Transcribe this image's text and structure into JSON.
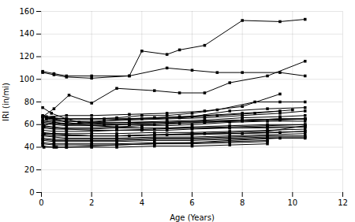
{
  "chart_data": {
    "type": "line",
    "xlabel": "Age (Years)",
    "ylabel": "IRI (in/mi)",
    "xlim": [
      0,
      12
    ],
    "xticks": [
      0,
      2,
      4,
      6,
      8,
      10,
      12
    ],
    "ylim": [
      0,
      160
    ],
    "yticks": [
      0,
      20,
      40,
      60,
      80,
      100,
      120,
      140,
      160
    ],
    "grid": true,
    "marker": "square",
    "series": [
      {
        "x": [
          0.05,
          0.5,
          1.0,
          2.0,
          3.5,
          5.0,
          6.0,
          7.0,
          8.0,
          9.5,
          10.5
        ],
        "values": [
          107,
          105,
          103,
          103,
          103,
          110,
          108,
          106,
          106,
          106,
          103
        ]
      },
      {
        "x": [
          0.05,
          0.5,
          1.0,
          2.0,
          3.5,
          4.0,
          5.0,
          5.5,
          6.5,
          8.0,
          9.5,
          10.5
        ],
        "values": [
          106,
          104,
          102,
          101,
          103,
          125,
          122,
          126,
          130,
          152,
          151,
          153
        ]
      },
      {
        "x": [
          0.05,
          0.5,
          1.1,
          2.0,
          3.0,
          4.5,
          5.5,
          6.5,
          7.5,
          9.0,
          10.5
        ],
        "values": [
          67,
          74,
          86,
          79,
          92,
          90,
          88,
          88,
          97,
          103,
          116
        ]
      },
      {
        "x": [
          0.05,
          0.5,
          1.0,
          2.0,
          3.0,
          4.0,
          5.0,
          6.0,
          7.0,
          8.5,
          9.5,
          10.5
        ],
        "values": [
          67,
          66,
          65,
          65,
          66,
          68,
          68,
          70,
          73,
          80,
          80,
          80
        ]
      },
      {
        "x": [
          0.05,
          0.5,
          1.0,
          2.0,
          3.0,
          4.5,
          6.0,
          7.5,
          9.0,
          10.5
        ],
        "values": [
          66,
          65,
          65,
          65,
          65,
          66,
          67,
          72,
          74,
          75
        ]
      },
      {
        "x": [
          0.05,
          0.5,
          1.0,
          2.0,
          3.5,
          5.0,
          6.5,
          8.0,
          9.5,
          10.5
        ],
        "values": [
          64,
          63,
          63,
          63,
          64,
          65,
          66,
          68,
          70,
          72
        ]
      },
      {
        "x": [
          0.05,
          0.5,
          1.0,
          2.0,
          3.5,
          5.0,
          6.5,
          8.0,
          9.5,
          10.5
        ],
        "values": [
          63,
          62,
          61,
          61,
          62,
          63,
          64,
          66,
          67,
          68
        ]
      },
      {
        "x": [
          0.05,
          0.5,
          1.0,
          2.0,
          3.5,
          5.0,
          6.5,
          8.0,
          9.5,
          10.5
        ],
        "values": [
          62,
          61,
          60,
          60,
          61,
          62,
          63,
          64,
          65,
          65
        ]
      },
      {
        "x": [
          0.05,
          0.5,
          1.0,
          2.0,
          3.5,
          5.0,
          6.5,
          8.0,
          9.5,
          10.5
        ],
        "values": [
          61,
          60,
          59,
          59,
          60,
          61,
          62,
          63,
          64,
          65
        ]
      },
      {
        "x": [
          0.05,
          0.5,
          1.0,
          2.0,
          3.0,
          4.0,
          5.0,
          6.0,
          7.5,
          9.0,
          10.5
        ],
        "values": [
          59,
          58,
          57,
          57,
          58,
          59,
          59,
          60,
          62,
          63,
          63
        ]
      },
      {
        "x": [
          0.05,
          0.5,
          1.0,
          2.0,
          3.0,
          4.0,
          5.0,
          6.0,
          7.5,
          9.0,
          10.5
        ],
        "values": [
          57,
          56,
          56,
          56,
          57,
          57,
          57,
          58,
          59,
          60,
          60
        ]
      },
      {
        "x": [
          0.05,
          0.5,
          1.0,
          2.0,
          3.0,
          4.0,
          5.0,
          6.0,
          7.5,
          9.0,
          10.5
        ],
        "values": [
          55,
          54,
          54,
          54,
          55,
          55,
          55,
          56,
          57,
          58,
          58
        ]
      },
      {
        "x": [
          0.05,
          0.5,
          1.0,
          2.0,
          3.0,
          4.5,
          6.0,
          7.5,
          9.0,
          10.5
        ],
        "values": [
          53,
          52,
          52,
          52,
          52,
          53,
          53,
          54,
          55,
          56
        ]
      },
      {
        "x": [
          0.05,
          0.5,
          1.0,
          2.0,
          3.0,
          4.5,
          6.0,
          7.5,
          9.0,
          10.5
        ],
        "values": [
          51,
          50,
          50,
          50,
          50,
          51,
          51,
          52,
          53,
          54
        ]
      },
      {
        "x": [
          0.05,
          0.5,
          1.0,
          2.0,
          3.0,
          4.5,
          6.0,
          7.5,
          9.0,
          10.5
        ],
        "values": [
          50,
          49,
          48,
          48,
          48,
          49,
          49,
          50,
          51,
          52
        ]
      },
      {
        "x": [
          0.05,
          0.5,
          1.0,
          2.0,
          3.0,
          4.5,
          6.0,
          7.5,
          9.0,
          10.5
        ],
        "values": [
          48,
          47,
          47,
          47,
          47,
          48,
          48,
          49,
          50,
          50
        ]
      },
      {
        "x": [
          0.05,
          0.5,
          1.0,
          2.0,
          3.0,
          4.5,
          6.0,
          7.5,
          9.0,
          10.5
        ],
        "values": [
          47,
          46,
          46,
          46,
          46,
          47,
          47,
          48,
          49,
          49
        ]
      },
      {
        "x": [
          0.05,
          0.5,
          1.0,
          2.0,
          3.0,
          4.5,
          6.0,
          7.5,
          9.0,
          10.5
        ],
        "values": [
          46,
          45,
          45,
          45,
          45,
          46,
          46,
          47,
          48,
          48
        ]
      },
      {
        "x": [
          0.05,
          0.5,
          1.0,
          2.0,
          3.0,
          4.5,
          6.0,
          7.5,
          9.0
        ],
        "values": [
          44,
          43,
          43,
          43,
          43,
          44,
          44,
          45,
          46
        ]
      },
      {
        "x": [
          0.05,
          0.5,
          1.0,
          2.0,
          3.0,
          4.5,
          6.0,
          7.5,
          9.0
        ],
        "values": [
          43,
          42,
          42,
          42,
          42,
          43,
          43,
          44,
          45
        ]
      },
      {
        "x": [
          0.05,
          0.5,
          1.0,
          2.0,
          3.0,
          4.5,
          6.0,
          7.5,
          9.0
        ],
        "values": [
          41,
          40,
          40,
          40,
          40,
          41,
          41,
          42,
          43
        ]
      },
      {
        "x": [
          0.1,
          0.6,
          1.0,
          2.0,
          3.0,
          4.5,
          6.0,
          7.5,
          9.5
        ],
        "values": [
          40,
          40,
          40,
          41,
          42,
          43,
          44,
          46,
          48
        ]
      },
      {
        "x": [
          0.05,
          0.4,
          1.0,
          1.5,
          2.5,
          3.5,
          4.5,
          5.5,
          6.5,
          8.0,
          9.5,
          10.5
        ],
        "values": [
          75,
          70,
          65,
          62,
          60,
          60,
          60,
          61,
          62,
          64,
          65,
          65
        ]
      },
      {
        "x": [
          0.05,
          0.4,
          1.0,
          2.0,
          3.0,
          4.0,
          5.0,
          6.0,
          7.5,
          9.0,
          10.5
        ],
        "values": [
          68,
          66,
          62,
          59,
          58,
          57,
          57,
          57,
          58,
          59,
          60
        ]
      },
      {
        "x": [
          0.1,
          0.5,
          1.0,
          2.5,
          3.5,
          4.5,
          5.5,
          6.5,
          8.0,
          9.5
        ],
        "values": [
          59,
          62,
          60,
          63,
          65,
          66,
          67,
          68,
          70,
          72
        ]
      },
      {
        "x": [
          0.1,
          0.5,
          1.0,
          2.0,
          3.0,
          4.5,
          6.0,
          7.5,
          9.0,
          10.5
        ],
        "values": [
          58,
          57,
          56,
          55,
          55,
          56,
          57,
          57,
          57,
          58
        ]
      },
      {
        "x": [
          0.1,
          1.0,
          2.0,
          3.5,
          5.0,
          6.5,
          8.0,
          9.5,
          10.5
        ],
        "values": [
          52,
          51,
          50,
          50,
          51,
          52,
          52,
          53,
          54
        ]
      },
      {
        "x": [
          0.1,
          0.5,
          1.0,
          2.0,
          3.0,
          4.5,
          6.0,
          7.5,
          9.0,
          10.5
        ],
        "values": [
          52,
          52,
          51,
          50,
          50,
          51,
          52,
          53,
          54,
          59
        ]
      },
      {
        "x": [
          0.2,
          1.0,
          2.0,
          3.5,
          5.0,
          6.5,
          8.0,
          9.5
        ],
        "values": [
          67,
          68,
          68,
          69,
          70,
          72,
          76,
          87
        ]
      },
      {
        "x": [
          0.2,
          1.0,
          2.5,
          4.0,
          5.5,
          7.0,
          8.5,
          10.0
        ],
        "values": [
          66,
          65,
          65,
          65,
          66,
          68,
          70,
          73
        ]
      },
      {
        "x": [
          0.2,
          1.0,
          2.0,
          3.5,
          5.0,
          6.5,
          8.0,
          9.5,
          10.5
        ],
        "values": [
          65,
          63,
          62,
          62,
          62,
          63,
          64,
          65,
          65
        ]
      }
    ]
  }
}
